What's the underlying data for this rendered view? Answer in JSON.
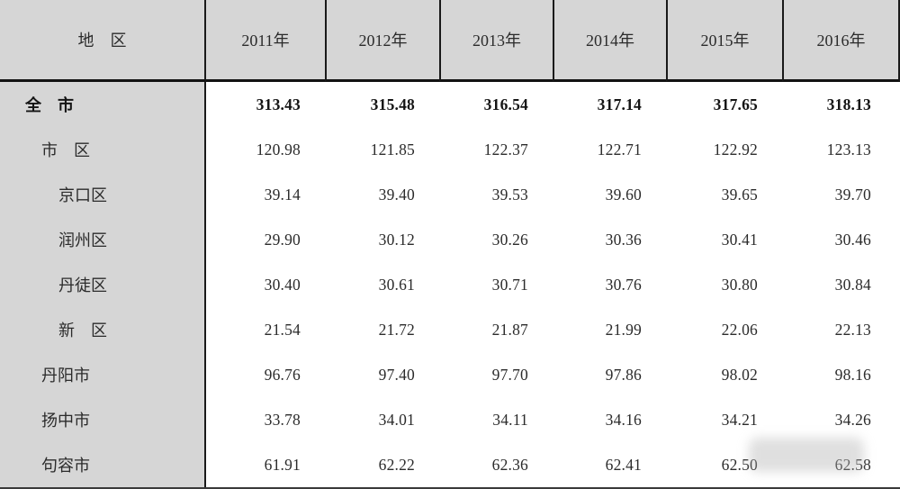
{
  "table": {
    "region_header": "地　区",
    "columns": [
      "2011年",
      "2012年",
      "2013年",
      "2014年",
      "2015年",
      "2016年"
    ],
    "rows": [
      {
        "label": "全　市",
        "indent": 0,
        "bold": true,
        "values": [
          "313.43",
          "315.48",
          "316.54",
          "317.14",
          "317.65",
          "318.13"
        ]
      },
      {
        "label": "市　区",
        "indent": 1,
        "bold": false,
        "values": [
          "120.98",
          "121.85",
          "122.37",
          "122.71",
          "122.92",
          "123.13"
        ]
      },
      {
        "label": "京口区",
        "indent": 2,
        "bold": false,
        "values": [
          "39.14",
          "39.40",
          "39.53",
          "39.60",
          "39.65",
          "39.70"
        ]
      },
      {
        "label": "润州区",
        "indent": 2,
        "bold": false,
        "values": [
          "29.90",
          "30.12",
          "30.26",
          "30.36",
          "30.41",
          "30.46"
        ]
      },
      {
        "label": "丹徒区",
        "indent": 2,
        "bold": false,
        "values": [
          "30.40",
          "30.61",
          "30.71",
          "30.76",
          "30.80",
          "30.84"
        ]
      },
      {
        "label": "新　区",
        "indent": 2,
        "bold": false,
        "values": [
          "21.54",
          "21.72",
          "21.87",
          "21.99",
          "22.06",
          "22.13"
        ]
      },
      {
        "label": "丹阳市",
        "indent": 1,
        "bold": false,
        "values": [
          "96.76",
          "97.40",
          "97.70",
          "97.86",
          "98.02",
          "98.16"
        ]
      },
      {
        "label": "扬中市",
        "indent": 1,
        "bold": false,
        "values": [
          "33.78",
          "34.01",
          "34.11",
          "34.16",
          "34.21",
          "34.26"
        ]
      },
      {
        "label": "句容市",
        "indent": 1,
        "bold": false,
        "values": [
          "61.91",
          "62.22",
          "62.36",
          "62.41",
          "62.50",
          "62.58"
        ]
      }
    ]
  },
  "colors": {
    "header_bg": "#d6d6d6",
    "rule_line": "#1a1a1a",
    "text": "#2b2b2b"
  },
  "chart_data": {
    "type": "table",
    "title": "",
    "categories": [
      "2011年",
      "2012年",
      "2013年",
      "2014年",
      "2015年",
      "2016年"
    ],
    "series": [
      {
        "name": "全市",
        "values": [
          313.43,
          315.48,
          316.54,
          317.14,
          317.65,
          318.13
        ]
      },
      {
        "name": "市区",
        "values": [
          120.98,
          121.85,
          122.37,
          122.71,
          122.92,
          123.13
        ]
      },
      {
        "name": "京口区",
        "values": [
          39.14,
          39.4,
          39.53,
          39.6,
          39.65,
          39.7
        ]
      },
      {
        "name": "润州区",
        "values": [
          29.9,
          30.12,
          30.26,
          30.36,
          30.41,
          30.46
        ]
      },
      {
        "name": "丹徒区",
        "values": [
          30.4,
          30.61,
          30.71,
          30.76,
          30.8,
          30.84
        ]
      },
      {
        "name": "新区",
        "values": [
          21.54,
          21.72,
          21.87,
          21.99,
          22.06,
          22.13
        ]
      },
      {
        "name": "丹阳市",
        "values": [
          96.76,
          97.4,
          97.7,
          97.86,
          98.02,
          98.16
        ]
      },
      {
        "name": "扬中市",
        "values": [
          33.78,
          34.01,
          34.11,
          34.16,
          34.21,
          34.26
        ]
      },
      {
        "name": "句容市",
        "values": [
          61.91,
          62.22,
          62.36,
          62.41,
          62.5,
          62.58
        ]
      }
    ]
  }
}
